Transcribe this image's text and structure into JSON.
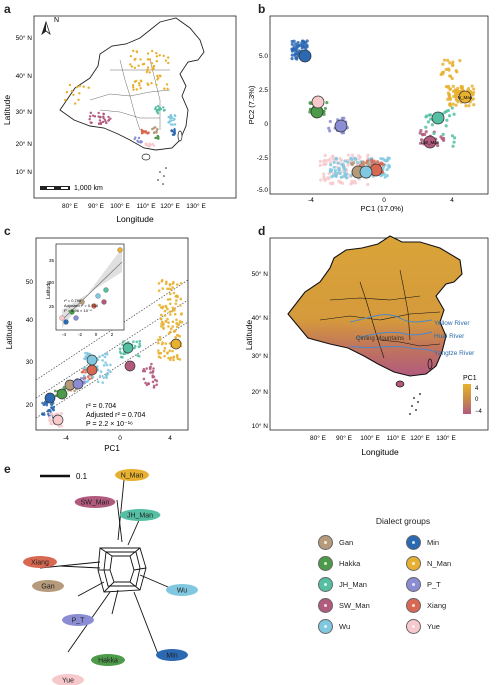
{
  "labels": {
    "a": "a",
    "b": "b",
    "c": "c",
    "d": "d",
    "e": "e"
  },
  "panel_a": {
    "xlabel": "Longitude",
    "ylabel": "Latitude",
    "xticks": [
      "80° E",
      "90° E",
      "100° E",
      "110° E",
      "120° E",
      "130° E"
    ],
    "yticks": [
      "50° N",
      "40° N",
      "30° N",
      "20° N",
      "10° N"
    ],
    "north": "N",
    "scalebar": "1,000 km"
  },
  "panel_b": {
    "xlabel": "PC1 (17.0%)",
    "ylabel": "PC2 (7.3%)",
    "xticks": [
      "-4",
      "0",
      "4"
    ],
    "yticks": [
      "5.0",
      "2.5",
      "0",
      "-2.5",
      "-5.0"
    ],
    "centroid_labels": [
      "N_Man",
      "SW_Man"
    ]
  },
  "panel_c": {
    "xlabel": "PC1",
    "ylabel": "Latitude",
    "xticks": [
      "-4",
      "0",
      "4"
    ],
    "yticks": [
      "50",
      "40",
      "30",
      "20"
    ],
    "stats": [
      "r² = 0.704",
      "Adjusted r² = 0.704",
      "P = 2.2 × 10⁻¹⁶"
    ],
    "inset": {
      "ylabel": "Latitude",
      "xticks": [
        "-4",
        "-2",
        "0",
        "2"
      ],
      "yticks": [
        "35",
        "30",
        "25"
      ],
      "stats": [
        "r² = 0.790",
        "Adjusted r² = 0.764",
        "P = 5.96 × 10⁻⁴"
      ]
    }
  },
  "panel_d": {
    "xlabel": "Longitude",
    "ylabel": "Latitude",
    "xticks": [
      "80° E",
      "90° E",
      "100° E",
      "110° E",
      "120° E",
      "130° E"
    ],
    "yticks": [
      "50° N",
      "40° N",
      "30° N",
      "20° N",
      "10° N"
    ],
    "rivers": [
      "Yellow River",
      "Huai River",
      "Yangtze River"
    ],
    "mountains": "Qinling Mountains",
    "colorbar": {
      "title": "PC1",
      "ticks": [
        "4",
        "0",
        "−4"
      ]
    }
  },
  "panel_e": {
    "scale": "0.1",
    "nodes": [
      {
        "name": "N_Man",
        "color": "#e8b030"
      },
      {
        "name": "SW_Man",
        "color": "#b25a7e"
      },
      {
        "name": "JH_Man",
        "color": "#55bfa3"
      },
      {
        "name": "Xiang",
        "color": "#d86852"
      },
      {
        "name": "Gan",
        "color": "#b69a7c"
      },
      {
        "name": "Wu",
        "color": "#7fc8e0"
      },
      {
        "name": "P_T",
        "color": "#8a8cd4"
      },
      {
        "name": "Hakka",
        "color": "#4e9a4b"
      },
      {
        "name": "Min",
        "color": "#2b69b3"
      },
      {
        "name": "Yue",
        "color": "#f7c9cc"
      }
    ]
  },
  "legend": {
    "title": "Dialect groups",
    "items": [
      {
        "name": "Gan",
        "color": "#b69a7c"
      },
      {
        "name": "Min",
        "color": "#2b69b3"
      },
      {
        "name": "Hakka",
        "color": "#4e9a4b"
      },
      {
        "name": "N_Man",
        "color": "#e8b030"
      },
      {
        "name": "JH_Man",
        "color": "#55bfa3"
      },
      {
        "name": "P_T",
        "color": "#8a8cd4"
      },
      {
        "name": "SW_Man",
        "color": "#b25a7e"
      },
      {
        "name": "Xiang",
        "color": "#d86852"
      },
      {
        "name": "Wu",
        "color": "#7fc8e0"
      },
      {
        "name": "Yue",
        "color": "#f7c9cc"
      }
    ]
  }
}
